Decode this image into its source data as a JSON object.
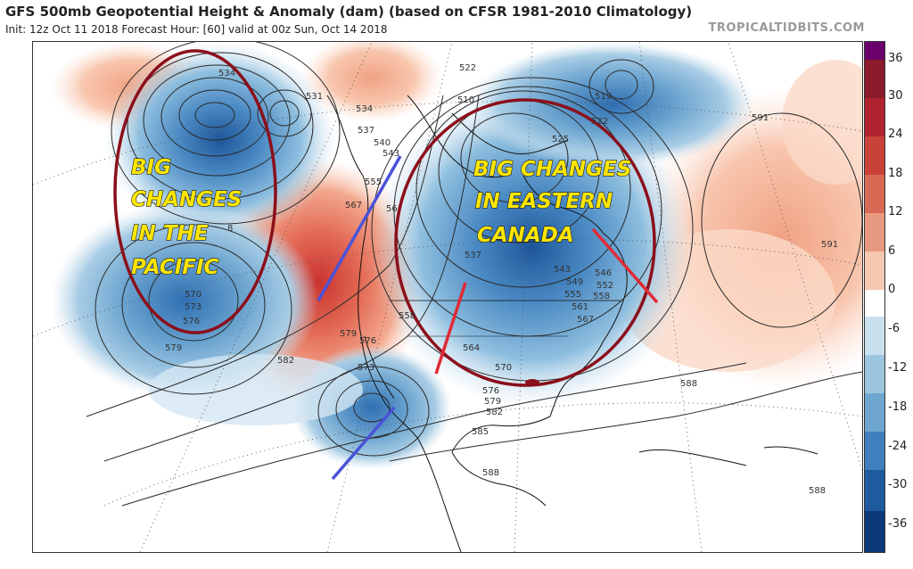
{
  "header": {
    "title": "GFS 500mb Geopotential Height & Anomaly (dam) (based on CFSR 1981-2010 Climatology)",
    "subtitle": "Init: 12z Oct 11 2018   Forecast Hour: [60]   valid at 00z Sun, Oct 14 2018",
    "credit": "TROPICALTIDBITS.COM"
  },
  "colorbar": {
    "labels": [
      "36",
      "30",
      "24",
      "18",
      "12",
      "6",
      "0",
      "-6",
      "-12",
      "-18",
      "-24",
      "-30",
      "-36"
    ],
    "colors": [
      "#6a006a",
      "#8b1a2a",
      "#b02430",
      "#c8423a",
      "#d86a55",
      "#e89a80",
      "#f6c9b0",
      "#ffffff",
      "#c9e1ef",
      "#9cc6e0",
      "#6ea6d0",
      "#3f7fbd",
      "#1f5a9e",
      "#0c3878"
    ]
  },
  "contour_labels": [
    "534",
    "531",
    "534",
    "537",
    "540",
    "543",
    "555",
    "567",
    "56",
    "522",
    "510",
    "519",
    "522",
    "525",
    "591",
    "591",
    "537",
    "543",
    "546",
    "549",
    "552",
    "555",
    "558",
    "561",
    "567",
    "558",
    "564",
    "570",
    "576",
    "579",
    "582",
    "585",
    "588",
    "588",
    "588",
    "570",
    "573",
    "576",
    "579",
    "582",
    "579",
    "576",
    "573",
    "8"
  ],
  "annotations": {
    "pacific": [
      "BIG",
      "CHANGES",
      "IN THE",
      "PACIFIC"
    ],
    "eastern_canada": [
      "BIG CHANGES",
      "IN EASTERN",
      "CANADA"
    ]
  }
}
